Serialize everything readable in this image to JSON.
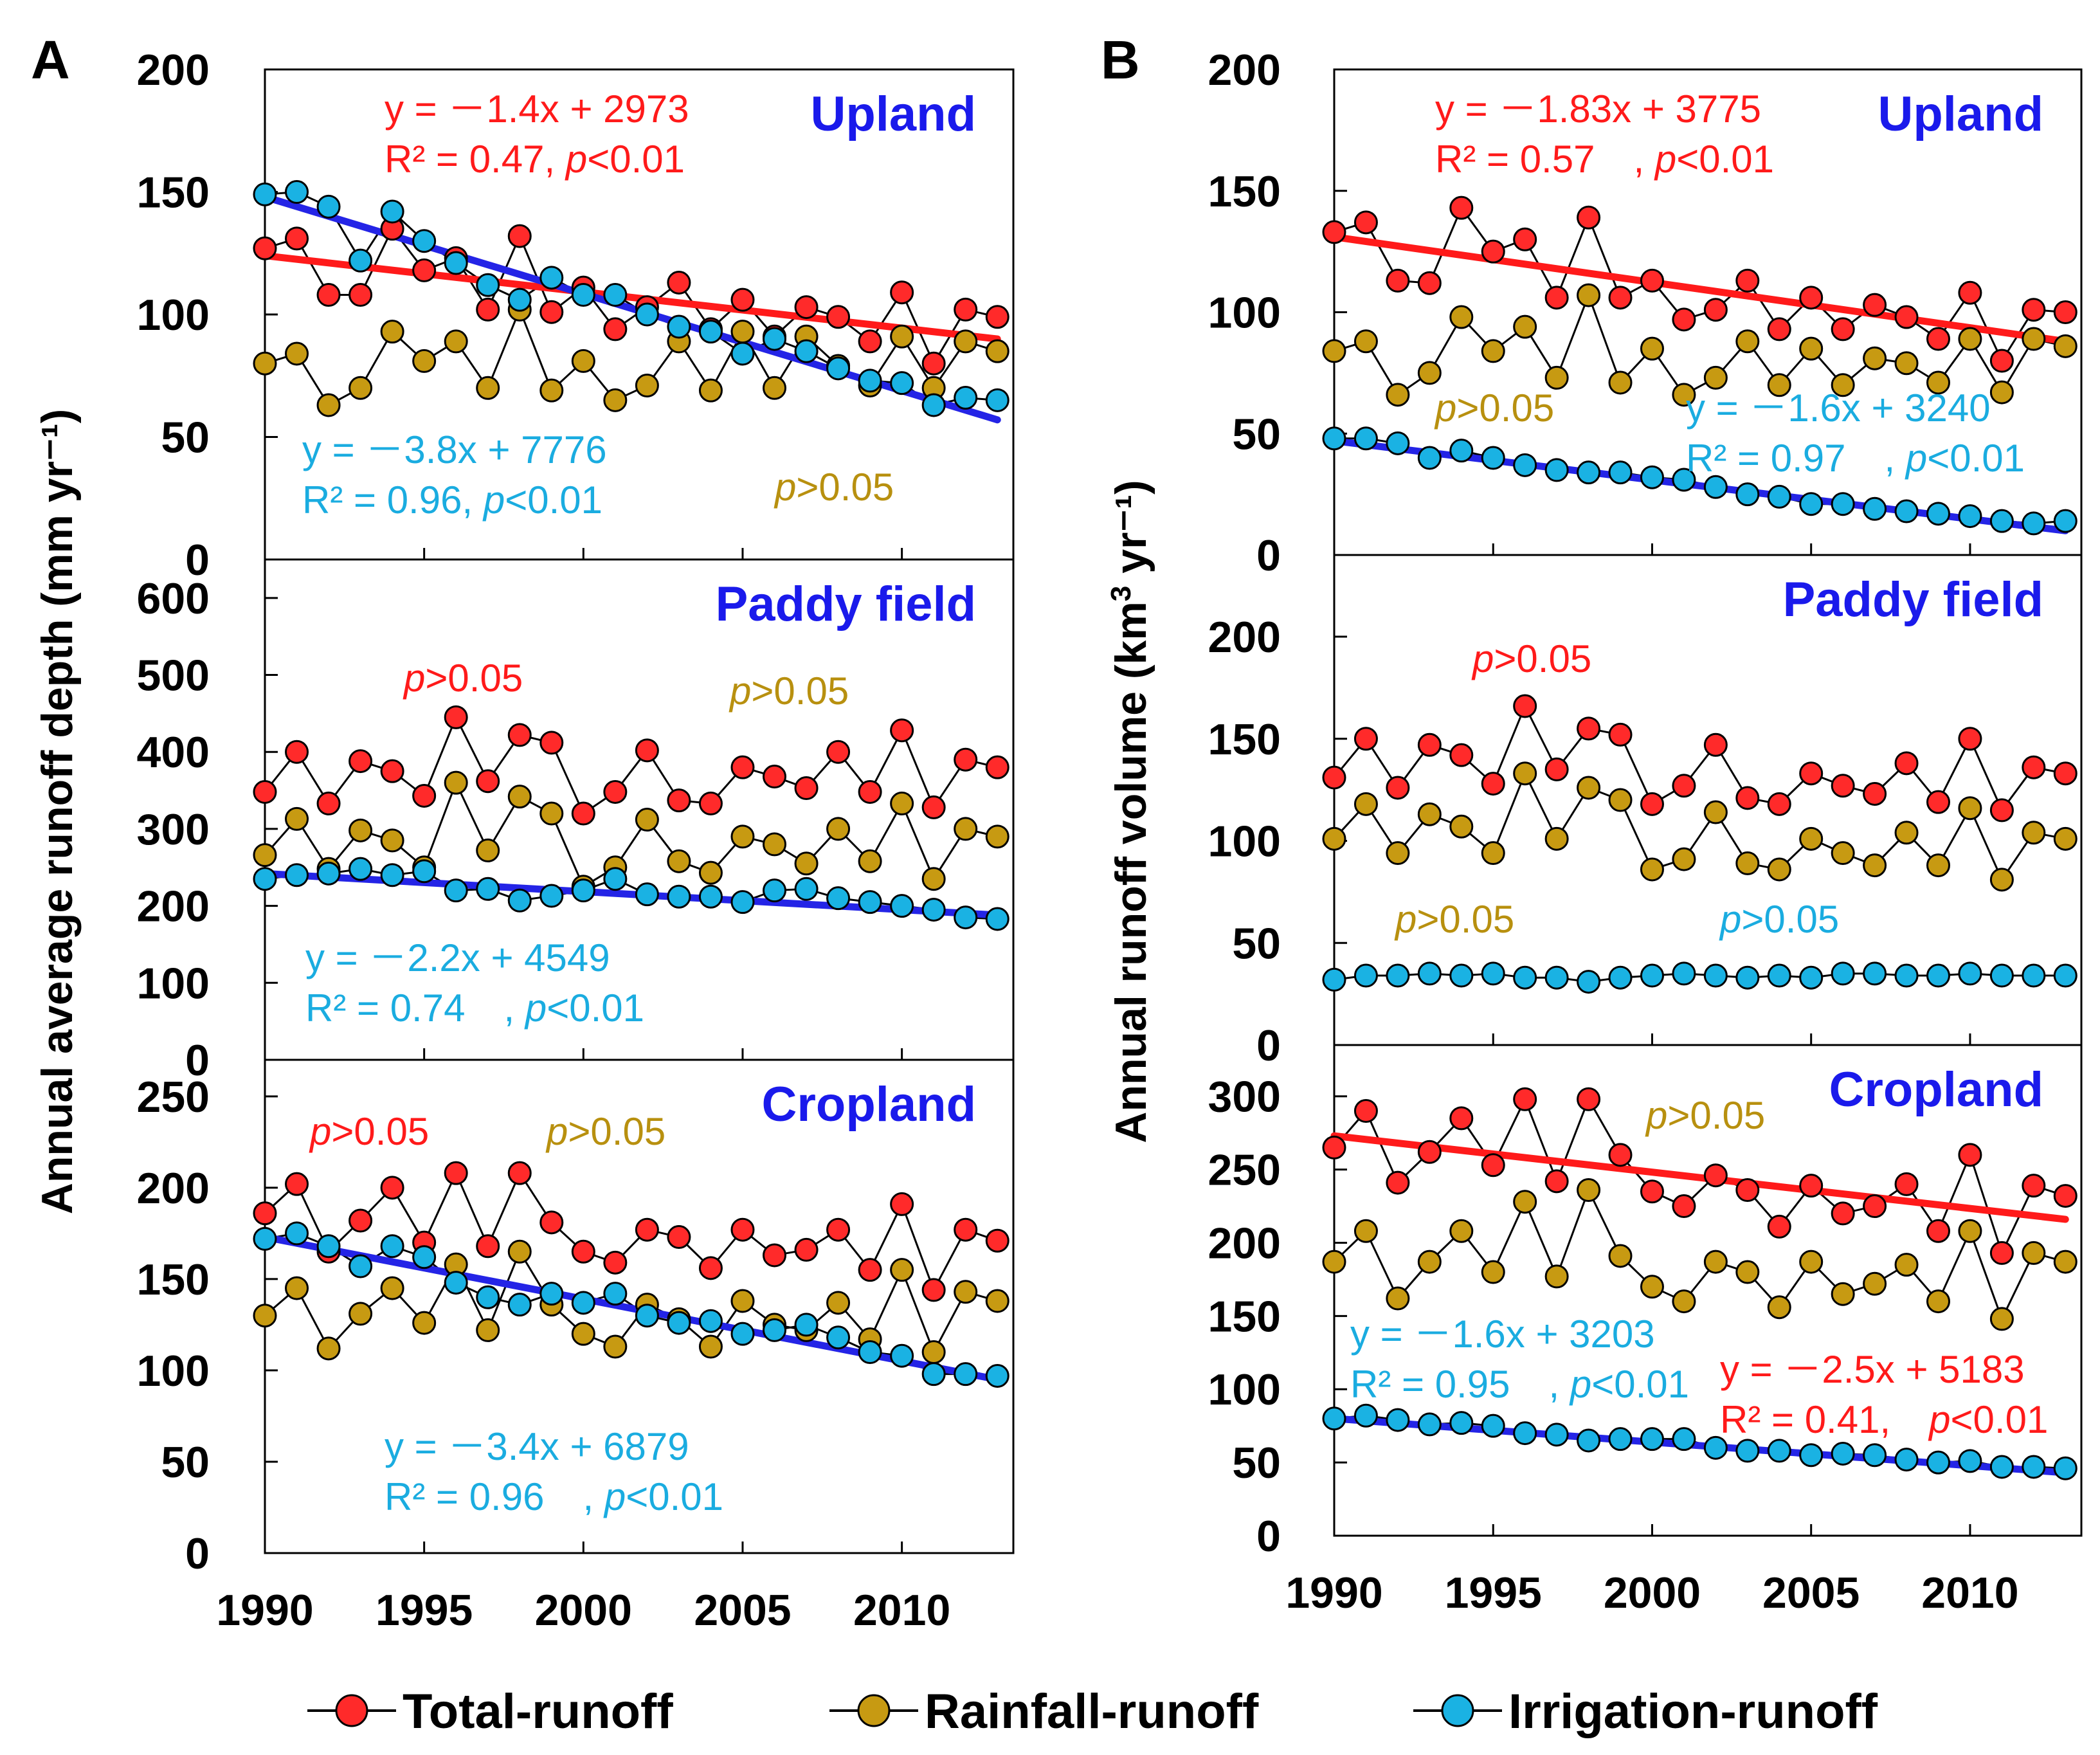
{
  "colors": {
    "total": "#ff2a2a",
    "rainfall": "#c79a12",
    "irrigation": "#1ab2e3",
    "red_text": "#ff1a1a",
    "gold_text": "#b8900f",
    "blue_text": "#1aace0",
    "trend_blue": "#2424e6",
    "trend_red": "#ff1a1a",
    "subtitle": "#1a1aeb"
  },
  "legend": [
    {
      "key": "total",
      "label": "Total-runoff"
    },
    {
      "key": "rainfall",
      "label": "Rainfall-runoff"
    },
    {
      "key": "irrigation",
      "label": "Irrigation-runoff"
    }
  ],
  "chart_data": [
    {
      "id": "A",
      "type": "line",
      "panel_label": "A",
      "ylabel": "Annual average runoff depth (mm yr⁻¹)",
      "x": [
        1990,
        1991,
        1992,
        1993,
        1994,
        1995,
        1996,
        1997,
        1998,
        1999,
        2000,
        2001,
        2002,
        2003,
        2004,
        2005,
        2006,
        2007,
        2008,
        2009,
        2010,
        2011,
        2012,
        2013
      ],
      "xticks": [
        "1990",
        "1995",
        "2000",
        "2005",
        "2010"
      ],
      "xlim": [
        1990,
        2013.5
      ],
      "subplots": [
        {
          "title": "Upland",
          "ylim": [
            0,
            200
          ],
          "yticks": [
            "0",
            "50",
            "100",
            "150",
            "200"
          ],
          "series": [
            {
              "name": "Total-runoff",
              "values": [
                127,
                131,
                108,
                108,
                135,
                118,
                123,
                102,
                132,
                101,
                111,
                94,
                103,
                113,
                94,
                106,
                91,
                103,
                99,
                89,
                109,
                80,
                102,
                99
              ]
            },
            {
              "name": "Rainfall-runoff",
              "values": [
                80,
                84,
                63,
                70,
                93,
                81,
                89,
                70,
                102,
                69,
                81,
                65,
                71,
                89,
                69,
                93,
                70,
                91,
                79,
                71,
                91,
                70,
                89,
                85
              ]
            },
            {
              "name": "Irrigation-runoff",
              "values": [
                149,
                150,
                144,
                122,
                142,
                130,
                121,
                112,
                106,
                115,
                108,
                108,
                100,
                95,
                93,
                84,
                90,
                85,
                78,
                73,
                72,
                63,
                66,
                65
              ]
            }
          ],
          "trendlines": [
            {
              "series": "Total-runoff",
              "y0": 124,
              "y1": 90
            },
            {
              "series": "Irrigation-runoff",
              "y0": 148,
              "y1": 57
            }
          ],
          "annotations": [
            {
              "color": "red",
              "line1": "y = －1.4x + 2973",
              "line2_pre": "R² = 0.47, ",
              "line2_p": "p",
              "line2_post": "<0.01"
            },
            {
              "color": "blue",
              "line1": "y = －3.8x + 7776",
              "line2_pre": "R² = 0.96, ",
              "line2_p": "p",
              "line2_post": "<0.01"
            },
            {
              "color": "gold",
              "p": "p",
              "text": ">0.05"
            }
          ]
        },
        {
          "title": "Paddy field",
          "ylim": [
            0,
            650
          ],
          "yticks": [
            "0",
            "100",
            "200",
            "300",
            "400",
            "500",
            "600"
          ],
          "series": [
            {
              "name": "Total-runoff",
              "values": [
                348,
                400,
                333,
                388,
                375,
                343,
                445,
                362,
                422,
                412,
                320,
                348,
                402,
                337,
                333,
                380,
                368,
                353,
                400,
                348,
                428,
                328,
                390,
                380
              ]
            },
            {
              "name": "Rainfall-runoff",
              "values": [
                266,
                313,
                248,
                298,
                285,
                250,
                360,
                272,
                342,
                320,
                225,
                250,
                312,
                258,
                243,
                290,
                280,
                255,
                300,
                258,
                333,
                235,
                300,
                290
              ]
            },
            {
              "name": "Irrigation-runoff",
              "values": [
                235,
                240,
                242,
                248,
                240,
                245,
                220,
                222,
                207,
                213,
                220,
                235,
                215,
                212,
                212,
                205,
                220,
                222,
                210,
                205,
                200,
                195,
                185,
                183
              ]
            }
          ],
          "trendlines": [
            {
              "series": "Irrigation-runoff",
              "y0": 242,
              "y1": 188
            }
          ],
          "annotations": [
            {
              "color": "red",
              "p": "p",
              "text": ">0.05"
            },
            {
              "color": "gold",
              "p": "p",
              "text": ">0.05"
            },
            {
              "color": "blue",
              "line1": "y = －2.2x + 4549",
              "line2_pre": "R² = 0.74　, ",
              "line2_p": "p",
              "line2_post": "<0.01"
            }
          ]
        },
        {
          "title": "Cropland",
          "ylim": [
            0,
            270
          ],
          "yticks": [
            "0",
            "50",
            "100",
            "150",
            "200",
            "250"
          ],
          "series": [
            {
              "name": "Total-runoff",
              "values": [
                186,
                202,
                165,
                182,
                200,
                170,
                208,
                168,
                208,
                181,
                165,
                159,
                177,
                173,
                156,
                177,
                163,
                166,
                177,
                155,
                191,
                144,
                177,
                171
              ]
            },
            {
              "name": "Rainfall-runoff",
              "values": [
                130,
                145,
                112,
                131,
                145,
                126,
                158,
                122,
                165,
                136,
                120,
                113,
                136,
                128,
                113,
                138,
                125,
                122,
                137,
                117,
                155,
                110,
                143,
                138
              ]
            },
            {
              "name": "Irrigation-runoff",
              "values": [
                172,
                175,
                168,
                157,
                168,
                162,
                148,
                140,
                136,
                142,
                137,
                142,
                130,
                126,
                127,
                120,
                122,
                125,
                118,
                110,
                108,
                98,
                98,
                97
              ]
            }
          ],
          "trendlines": [
            {
              "series": "Irrigation-runoff",
              "y0": 173,
              "y1": 95
            }
          ],
          "annotations": [
            {
              "color": "red",
              "p": "p",
              "text": ">0.05"
            },
            {
              "color": "gold",
              "p": "p",
              "text": ">0.05"
            },
            {
              "color": "blue",
              "line1": "y = －3.4x + 6879",
              "line2_pre": "R² = 0.96　, ",
              "line2_p": "p",
              "line2_post": "<0.01"
            }
          ]
        }
      ]
    },
    {
      "id": "B",
      "type": "line",
      "panel_label": "B",
      "ylabel_pre": "Annual runoff volume (km",
      "ylabel_sup": "3",
      "ylabel_post": " yr⁻¹)",
      "x": [
        1990,
        1991,
        1992,
        1993,
        1994,
        1995,
        1996,
        1997,
        1998,
        1999,
        2000,
        2001,
        2002,
        2003,
        2004,
        2005,
        2006,
        2007,
        2008,
        2009,
        2010,
        2011,
        2012,
        2013
      ],
      "xticks": [
        "1990",
        "1995",
        "2000",
        "2005",
        "2010"
      ],
      "xlim": [
        1990,
        2013.5
      ],
      "subplots": [
        {
          "title": "Upland",
          "ylim": [
            0,
            200
          ],
          "yticks": [
            "0",
            "50",
            "100",
            "150",
            "200"
          ],
          "series": [
            {
              "name": "Total-runoff",
              "values": [
                133,
                137,
                113,
                112,
                143,
                125,
                130,
                106,
                139,
                106,
                113,
                97,
                101,
                113,
                93,
                106,
                93,
                103,
                98,
                89,
                108,
                80,
                101,
                100
              ]
            },
            {
              "name": "Rainfall-runoff",
              "values": [
                84,
                88,
                66,
                75,
                98,
                84,
                94,
                73,
                107,
                71,
                85,
                66,
                73,
                88,
                70,
                85,
                70,
                81,
                79,
                71,
                89,
                67,
                89,
                86
              ]
            },
            {
              "name": "Irrigation-runoff",
              "values": [
                48,
                48,
                46,
                40,
                43,
                40,
                37,
                35,
                34,
                34,
                32,
                31,
                28,
                25,
                24,
                21,
                21,
                19,
                18,
                17,
                16,
                14,
                13,
                14
              ]
            }
          ],
          "trendlines": [
            {
              "series": "Total-runoff",
              "y0": 131,
              "y1": 88
            },
            {
              "series": "Irrigation-runoff",
              "y0": 47,
              "y1": 10
            }
          ],
          "annotations": [
            {
              "color": "red",
              "line1": "y = －1.83x + 3775",
              "line2_pre": "R² = 0.57　, ",
              "line2_p": "p",
              "line2_post": "<0.01"
            },
            {
              "color": "gold",
              "p": "p",
              "text": ">0.05"
            },
            {
              "color": "blue",
              "line1": "y = －1.6x + 3240",
              "line2_pre": "R² = 0.97　, ",
              "line2_p": "p",
              "line2_post": "<0.01"
            }
          ]
        },
        {
          "title": "Paddy field",
          "ylim": [
            0,
            240
          ],
          "yticks": [
            "0",
            "50",
            "100",
            "150",
            "200"
          ],
          "series": [
            {
              "name": "Total-runoff",
              "values": [
                131,
                150,
                126,
                147,
                142,
                128,
                166,
                135,
                155,
                152,
                118,
                127,
                147,
                121,
                118,
                133,
                127,
                123,
                138,
                119,
                150,
                115,
                136,
                133
              ]
            },
            {
              "name": "Rainfall-runoff",
              "values": [
                101,
                118,
                94,
                113,
                107,
                94,
                133,
                101,
                126,
                120,
                86,
                91,
                114,
                89,
                86,
                101,
                94,
                88,
                104,
                88,
                116,
                81,
                104,
                101
              ]
            },
            {
              "name": "Irrigation-runoff",
              "values": [
                32,
                34,
                34,
                35,
                34,
                35,
                33,
                33,
                31,
                33,
                34,
                35,
                34,
                33,
                34,
                33,
                35,
                35,
                34,
                34,
                35,
                34,
                34,
                34
              ]
            }
          ],
          "trendlines": [],
          "annotations": [
            {
              "color": "red",
              "p": "p",
              "text": ">0.05"
            },
            {
              "color": "gold",
              "p": "p",
              "text": ">0.05"
            },
            {
              "color": "blue",
              "p": "p",
              "text": ">0.05"
            }
          ]
        },
        {
          "title": "Cropland",
          "ylim": [
            0,
            335
          ],
          "yticks": [
            "0",
            "50",
            "100",
            "150",
            "200",
            "250",
            "300"
          ],
          "series": [
            {
              "name": "Total-runoff",
              "values": [
                265,
                290,
                241,
                262,
                285,
                253,
                298,
                242,
                298,
                260,
                235,
                225,
                246,
                236,
                211,
                239,
                220,
                225,
                240,
                208,
                260,
                193,
                239,
                232
              ]
            },
            {
              "name": "Rainfall-runoff",
              "values": [
                187,
                208,
                162,
                187,
                208,
                180,
                228,
                177,
                236,
                191,
                170,
                160,
                187,
                180,
                156,
                187,
                165,
                172,
                185,
                160,
                208,
                148,
                193,
                187
              ]
            },
            {
              "name": "Irrigation-runoff",
              "values": [
                80,
                82,
                79,
                76,
                77,
                75,
                70,
                69,
                65,
                66,
                66,
                66,
                60,
                58,
                58,
                55,
                56,
                55,
                52,
                50,
                51,
                47,
                47,
                46
              ]
            }
          ],
          "trendlines": [
            {
              "series": "Total-runoff",
              "y0": 273,
              "y1": 216
            },
            {
              "series": "Irrigation-runoff",
              "y0": 80,
              "y1": 43
            }
          ],
          "annotations": [
            {
              "color": "gold",
              "p": "p",
              "text": ">0.05"
            },
            {
              "color": "blue",
              "line1": "y = －1.6x + 3203",
              "line2_pre": "R² = 0.95　, ",
              "line2_p": "p",
              "line2_post": "<0.01"
            },
            {
              "color": "red",
              "line1": "y = －2.5x + 5183",
              "line2_pre": "R² = 0.41,　",
              "line2_p": "p",
              "line2_post": "<0.01"
            }
          ]
        }
      ]
    }
  ]
}
